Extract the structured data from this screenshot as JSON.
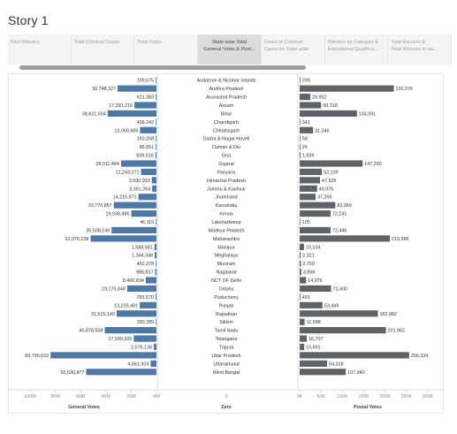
{
  "story": {
    "title": "Story 1"
  },
  "tabs": [
    {
      "label": "Total Winners",
      "active": false
    },
    {
      "label": "Total Criminal Cases",
      "active": false
    },
    {
      "label": "Total Votes",
      "active": false
    },
    {
      "label": "State wise Total\nGeneral Votes & Post...",
      "active": true
    },
    {
      "label": "Count of Criminal\nCases by State wise",
      "active": false
    },
    {
      "label": "Winners by Category &\nEducational Qualifica...",
      "active": false
    },
    {
      "label": "Total Electors &\nTotal Winners in ea...",
      "active": false
    }
  ],
  "colors": {
    "general_bar": "#4e79a7",
    "postal_bar": "#5f6368",
    "grid": "#e8e8e8"
  },
  "chart_data": {
    "type": "bar",
    "categories": [
      "Andaman & Nicobar Islands",
      "Andhra Pradesh",
      "Arunachal Pradesh",
      "Assam",
      "Bihar",
      "Chandigarh",
      "Chhattisgarh",
      "Dadra & Nagar Haveli",
      "Daman & Diu",
      "Goa",
      "Gujarat",
      "Haryana",
      "Himachal Pradesh",
      "Jammu & Kashmir",
      "Jharkhand",
      "Karnataka",
      "Kerala",
      "Lakshadweep",
      "Madhya Pradesh",
      "Maharashtra",
      "Manipur",
      "Meghalaya",
      "Mizoram",
      "Nagaland",
      "NCT OF Delhi",
      "Odisha",
      "Puducherry",
      "Punjab",
      "Rajasthan",
      "Sikkim",
      "Tamil Nadu",
      "Telangana",
      "Tripura",
      "Uttar Pradesh",
      "Uttarakhand",
      "West Bengal"
    ],
    "series": [
      {
        "name": "General Votes",
        "values": [
          199675,
          30748327,
          621383,
          17391216,
          38621504,
          436242,
          13060689,
          193258,
          86651,
          839015,
          28011484,
          12243072,
          3690933,
          3391264,
          14215871,
          33775857,
          19938486,
          46115,
          35508149,
          52076238,
          1588581,
          1344348,
          492378,
          995817,
          8490834,
          23176848,
          765570,
          13225481,
          31515149,
          330285,
          40878508,
          17939926,
          2076138,
          83790632,
          4661924,
          55630877
        ],
        "labels": [
          "199,675",
          "30,748,327",
          "621,383",
          "17,391,216",
          "38,621,504",
          "436,242",
          "13,060,689",
          "193,258",
          "86,651",
          "839,015",
          "28,011,484",
          "12,243,072",
          "3,690,933",
          "3,391,264",
          "14,215,871",
          "33,775,857",
          "19,938,486",
          "46,115",
          "35,508,149",
          "52,076,238",
          "1,588,581",
          "1,344,348",
          "492,378",
          "995,817",
          "8,490,834",
          "23,176,848",
          "765,570",
          "13,225,481",
          "31,515,149",
          "330,285",
          "40,878,508",
          "17,939,926",
          "2,076,138",
          "83,790,632",
          "4,661,924",
          "55,630,877"
        ],
        "axis": {
          "label": "General Votes",
          "ticks": [
            "100M",
            "80M",
            "60M",
            "40M",
            "20M",
            "0M"
          ],
          "tick_values": [
            100000000,
            80000000,
            60000000,
            40000000,
            20000000,
            0
          ],
          "range": [
            0,
            100000000
          ],
          "direction": "right-to-left"
        }
      },
      {
        "name": "Postal Votes",
        "values": [
          200,
          220376,
          24952,
          50318,
          134091,
          341,
          31346,
          58,
          26,
          1939,
          147200,
          52139,
          47626,
          40976,
          37256,
          83369,
          72241,
          105,
          72446,
          210996,
          10104,
          2321,
          2759,
          3856,
          14976,
          73400,
          491,
          53449,
          182982,
          11688,
          201962,
          16707,
          10691,
          256334,
          64316,
          107940
        ],
        "labels": [
          "200",
          "220,376",
          "24,952",
          "50,318",
          "134,091",
          "341",
          "31,346",
          "58",
          "26",
          "1,939",
          "147,200",
          "52,139",
          "47,626",
          "40,976",
          "37,256",
          "83,369",
          "72,241",
          "105",
          "72,446",
          "210,996",
          "10,104",
          "2,321",
          "2,759",
          "3,856",
          "14,976",
          "73,400",
          "491",
          "53,449",
          "182,982",
          "11,688",
          "201,962",
          "16,707",
          "10,691",
          "256,334",
          "64,316",
          "107,940"
        ],
        "axis": {
          "label": "Postal Votes",
          "ticks": [
            "0K",
            "50K",
            "100K",
            "150K",
            "200K",
            "250K",
            "300K"
          ],
          "tick_values": [
            0,
            50000,
            100000,
            150000,
            200000,
            250000,
            300000
          ],
          "range": [
            0,
            300000
          ]
        }
      }
    ],
    "middle_axis": {
      "label": "Zero",
      "ticks": [
        "0"
      ]
    },
    "grid": false
  }
}
